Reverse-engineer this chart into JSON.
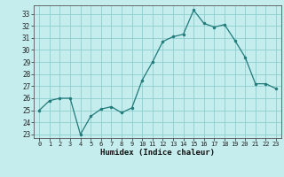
{
  "x": [
    0,
    1,
    2,
    3,
    4,
    5,
    6,
    7,
    8,
    9,
    10,
    11,
    12,
    13,
    14,
    15,
    16,
    17,
    18,
    19,
    20,
    21,
    22,
    23
  ],
  "y": [
    25.0,
    25.8,
    26.0,
    26.0,
    23.0,
    24.5,
    25.1,
    25.3,
    24.8,
    25.2,
    27.5,
    29.0,
    30.7,
    31.1,
    31.3,
    33.3,
    32.2,
    31.9,
    32.1,
    30.8,
    29.4,
    27.2,
    27.2,
    26.8
  ],
  "xlabel": "Humidex (Indice chaleur)",
  "bg_color": "#c5eded",
  "grid_color": "#8ecece",
  "line_color": "#217a7a",
  "marker_color": "#217a7a",
  "xlim": [
    -0.5,
    23.5
  ],
  "ylim": [
    22.7,
    33.7
  ],
  "yticks": [
    23,
    24,
    25,
    26,
    27,
    28,
    29,
    30,
    31,
    32,
    33
  ],
  "xticks": [
    0,
    1,
    2,
    3,
    4,
    5,
    6,
    7,
    8,
    9,
    10,
    11,
    12,
    13,
    14,
    15,
    16,
    17,
    18,
    19,
    20,
    21,
    22,
    23
  ]
}
